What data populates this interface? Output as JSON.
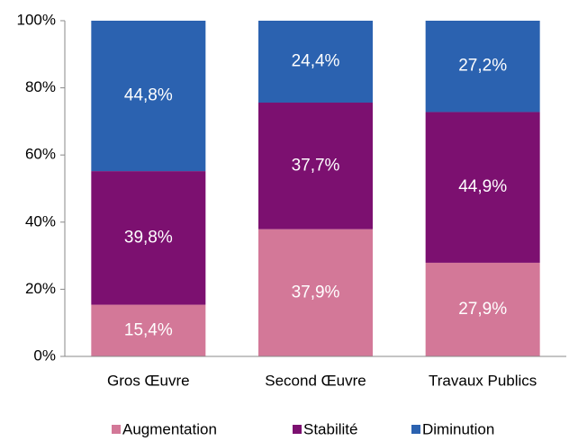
{
  "chart_data": {
    "type": "stacked_bar",
    "categories": [
      "Gros Œuvre",
      "Second Œuvre",
      "Travaux Publics"
    ],
    "series": [
      {
        "name": "Augmentation",
        "color": "#d37898",
        "values": [
          15.4,
          37.9,
          27.9
        ],
        "value_labels": [
          "15,4%",
          "37,9%",
          "27,9%"
        ]
      },
      {
        "name": "Stabilité",
        "color": "#7c1070",
        "values": [
          39.8,
          37.7,
          44.9
        ],
        "value_labels": [
          "39,8%",
          "37,7%",
          "44,9%"
        ]
      },
      {
        "name": "Diminution",
        "color": "#2b62b0",
        "values": [
          44.8,
          24.4,
          27.2
        ],
        "value_labels": [
          "44,8%",
          "24,4%",
          "27,2%"
        ]
      }
    ],
    "ylim": [
      0,
      100
    ],
    "yticks": [
      {
        "value": 0,
        "label": "0%"
      },
      {
        "value": 20,
        "label": "20%"
      },
      {
        "value": 40,
        "label": "40%"
      },
      {
        "value": 60,
        "label": "60%"
      },
      {
        "value": 80,
        "label": "80%"
      },
      {
        "value": 100,
        "label": "100%"
      }
    ],
    "legend": "bottom"
  }
}
